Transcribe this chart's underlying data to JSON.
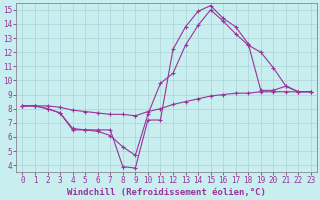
{
  "background_color": "#c8eef0",
  "grid_color": "#b0d8da",
  "line_color": "#993399",
  "xlabel": "Windchill (Refroidissement éolien,°C)",
  "xlabel_fontsize": 6.5,
  "tick_fontsize": 5.5,
  "xlim": [
    -0.5,
    23.5
  ],
  "ylim": [
    3.5,
    15.5
  ],
  "xticks": [
    0,
    1,
    2,
    3,
    4,
    5,
    6,
    7,
    8,
    9,
    10,
    11,
    12,
    13,
    14,
    15,
    16,
    17,
    18,
    19,
    20,
    21,
    22,
    23
  ],
  "yticks": [
    4,
    5,
    6,
    7,
    8,
    9,
    10,
    11,
    12,
    13,
    14,
    15
  ],
  "series": [
    {
      "x": [
        0,
        1,
        2,
        3,
        4,
        5,
        6,
        7,
        8,
        9,
        10,
        11,
        12,
        13,
        14,
        15,
        16,
        17,
        18,
        19,
        20,
        21,
        22,
        23
      ],
      "y": [
        8.2,
        8.2,
        8.0,
        7.7,
        6.6,
        6.5,
        6.5,
        6.5,
        3.9,
        3.8,
        7.2,
        7.2,
        12.2,
        13.8,
        14.9,
        15.3,
        14.4,
        13.8,
        12.6,
        9.3,
        9.3,
        9.6,
        9.2,
        9.2
      ]
    },
    {
      "x": [
        0,
        1,
        2,
        3,
        4,
        5,
        6,
        7,
        8,
        9,
        10,
        11,
        12,
        13,
        14,
        15,
        16,
        17,
        18,
        19,
        20,
        21,
        22,
        23
      ],
      "y": [
        8.2,
        8.2,
        8.0,
        7.7,
        6.5,
        6.5,
        6.4,
        6.1,
        5.3,
        4.7,
        7.6,
        9.8,
        10.5,
        12.5,
        13.9,
        15.0,
        14.2,
        13.3,
        12.5,
        12.0,
        10.9,
        9.6,
        9.2,
        9.2
      ]
    },
    {
      "x": [
        0,
        1,
        2,
        3,
        4,
        5,
        6,
        7,
        8,
        9,
        10,
        11,
        12,
        13,
        14,
        15,
        16,
        17,
        18,
        19,
        20,
        21,
        22,
        23
      ],
      "y": [
        8.2,
        8.2,
        8.2,
        8.1,
        7.9,
        7.8,
        7.7,
        7.6,
        7.6,
        7.5,
        7.8,
        8.0,
        8.3,
        8.5,
        8.7,
        8.9,
        9.0,
        9.1,
        9.1,
        9.2,
        9.2,
        9.2,
        9.2,
        9.2
      ]
    }
  ]
}
